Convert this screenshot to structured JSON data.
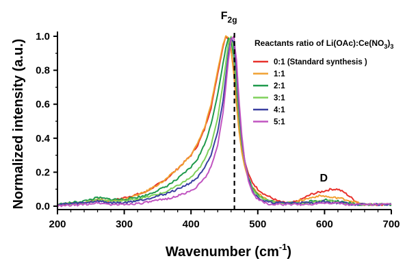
{
  "chart_data": {
    "type": "line",
    "xlabel": "Wavenumber (cm-1)",
    "xlabel_main": "Wavenumber (cm",
    "xlabel_sup": "-1",
    "xlabel_tail": ")",
    "ylabel": "Normalized intensity (a.u.)",
    "xlim": [
      200,
      700
    ],
    "ylim": [
      -0.02,
      1.02
    ],
    "x_ticks": [
      "200",
      "300",
      "400",
      "500",
      "600",
      "700"
    ],
    "y_ticks": [
      "0.0",
      "0.2",
      "0.4",
      "0.6",
      "0.8",
      "1.0"
    ],
    "grid": false,
    "legend_position": "top-right",
    "legend_title": "Reactants ratio of Li(OAc):Ce(NO3)3",
    "legend_title_parts": [
      "Reactants ratio of Li(OAc):Ce(NO",
      "3",
      ")",
      "3"
    ],
    "annotations": {
      "peak_main": "F",
      "peak_sub": "2g",
      "peak_label": "F2g",
      "peak_x": 465,
      "defect_label": "D",
      "defect_x": 605,
      "defect_y": 0.13
    },
    "series": [
      {
        "name": "0:1 (Standard synthesis )",
        "color": "#e8302b",
        "x": [
          200,
          240,
          260,
          280,
          300,
          330,
          360,
          380,
          400,
          410,
          420,
          430,
          440,
          448,
          452,
          456,
          460,
          464,
          468,
          472,
          476,
          480,
          486,
          492,
          500,
          510,
          520,
          530,
          540,
          550,
          560,
          570,
          580,
          590,
          600,
          610,
          620,
          630,
          640,
          650,
          660,
          680,
          700
        ],
        "y": [
          0.01,
          0.02,
          0.04,
          0.03,
          0.05,
          0.08,
          0.15,
          0.22,
          0.3,
          0.36,
          0.45,
          0.58,
          0.78,
          0.94,
          1.0,
          0.98,
          0.92,
          0.8,
          0.64,
          0.48,
          0.36,
          0.27,
          0.19,
          0.14,
          0.1,
          0.07,
          0.05,
          0.03,
          0.02,
          0.02,
          0.03,
          0.05,
          0.07,
          0.08,
          0.09,
          0.1,
          0.1,
          0.08,
          0.05,
          0.02,
          0.01,
          0.01,
          0.01
        ]
      },
      {
        "name": "1:1",
        "color": "#f0a030",
        "x": [
          200,
          240,
          260,
          280,
          300,
          330,
          360,
          380,
          400,
          410,
          420,
          430,
          440,
          448,
          452,
          456,
          460,
          464,
          468,
          472,
          476,
          480,
          486,
          492,
          500,
          510,
          520,
          530,
          540,
          550,
          560,
          570,
          580,
          590,
          600,
          610,
          620,
          630,
          640,
          650,
          660,
          680,
          700
        ],
        "y": [
          0.01,
          0.02,
          0.04,
          0.03,
          0.04,
          0.08,
          0.15,
          0.22,
          0.3,
          0.37,
          0.46,
          0.6,
          0.8,
          0.95,
          1.0,
          0.99,
          0.92,
          0.78,
          0.6,
          0.44,
          0.32,
          0.24,
          0.16,
          0.11,
          0.08,
          0.05,
          0.03,
          0.02,
          0.02,
          0.02,
          0.03,
          0.04,
          0.05,
          0.06,
          0.06,
          0.05,
          0.05,
          0.04,
          0.03,
          0.02,
          0.01,
          0.01,
          0.01
        ]
      },
      {
        "name": "2:1",
        "color": "#1f9a4c",
        "x": [
          200,
          240,
          260,
          280,
          300,
          330,
          360,
          380,
          400,
          410,
          420,
          430,
          440,
          448,
          452,
          456,
          460,
          464,
          468,
          472,
          476,
          480,
          486,
          492,
          500,
          510,
          520,
          530,
          540,
          550,
          560,
          570,
          580,
          590,
          600,
          610,
          620,
          630,
          640,
          650,
          660,
          680,
          700
        ],
        "y": [
          0.01,
          0.03,
          0.05,
          0.04,
          0.04,
          0.06,
          0.11,
          0.16,
          0.23,
          0.28,
          0.36,
          0.48,
          0.66,
          0.84,
          0.93,
          0.99,
          0.97,
          0.88,
          0.7,
          0.52,
          0.37,
          0.27,
          0.17,
          0.11,
          0.07,
          0.04,
          0.03,
          0.02,
          0.02,
          0.02,
          0.02,
          0.02,
          0.03,
          0.03,
          0.04,
          0.03,
          0.03,
          0.02,
          0.02,
          0.01,
          0.01,
          0.01,
          0.01
        ]
      },
      {
        "name": "3:1",
        "color": "#7fd05a",
        "x": [
          200,
          240,
          260,
          280,
          300,
          330,
          360,
          380,
          400,
          410,
          420,
          430,
          440,
          448,
          452,
          456,
          460,
          464,
          468,
          472,
          476,
          480,
          486,
          492,
          500,
          510,
          520,
          530,
          540,
          550,
          560,
          570,
          580,
          590,
          600,
          610,
          620,
          630,
          640,
          650,
          660,
          680,
          700
        ],
        "y": [
          0.01,
          0.02,
          0.04,
          0.03,
          0.03,
          0.05,
          0.08,
          0.12,
          0.17,
          0.21,
          0.27,
          0.36,
          0.52,
          0.72,
          0.84,
          0.96,
          1.0,
          0.92,
          0.74,
          0.54,
          0.38,
          0.27,
          0.16,
          0.1,
          0.06,
          0.04,
          0.03,
          0.02,
          0.02,
          0.02,
          0.02,
          0.02,
          0.02,
          0.03,
          0.03,
          0.03,
          0.02,
          0.02,
          0.01,
          0.01,
          0.01,
          0.01,
          0.01
        ]
      },
      {
        "name": "4:1",
        "color": "#3a3fa0",
        "x": [
          200,
          240,
          260,
          280,
          300,
          330,
          360,
          380,
          400,
          410,
          420,
          430,
          440,
          448,
          452,
          456,
          460,
          464,
          468,
          472,
          476,
          480,
          486,
          492,
          500,
          510,
          520,
          530,
          540,
          550,
          560,
          570,
          580,
          590,
          600,
          610,
          620,
          630,
          640,
          650,
          660,
          680,
          700
        ],
        "y": [
          0.01,
          0.02,
          0.03,
          0.02,
          0.02,
          0.04,
          0.07,
          0.1,
          0.14,
          0.17,
          0.22,
          0.3,
          0.44,
          0.62,
          0.76,
          0.9,
          0.99,
          0.96,
          0.8,
          0.58,
          0.4,
          0.28,
          0.16,
          0.09,
          0.05,
          0.03,
          0.02,
          0.02,
          0.02,
          0.02,
          0.02,
          0.02,
          0.02,
          0.02,
          0.03,
          0.02,
          0.02,
          0.02,
          0.01,
          0.01,
          0.01,
          0.01,
          0.01
        ]
      },
      {
        "name": "5:1",
        "color": "#c054c0",
        "x": [
          200,
          240,
          260,
          280,
          300,
          330,
          360,
          380,
          400,
          410,
          420,
          430,
          440,
          448,
          452,
          456,
          460,
          464,
          468,
          472,
          476,
          480,
          486,
          492,
          500,
          510,
          520,
          530,
          540,
          550,
          560,
          570,
          580,
          590,
          600,
          610,
          620,
          630,
          640,
          650,
          660,
          680,
          700
        ],
        "y": [
          0.0,
          0.01,
          0.02,
          0.01,
          0.01,
          0.02,
          0.04,
          0.06,
          0.09,
          0.12,
          0.16,
          0.23,
          0.36,
          0.55,
          0.7,
          0.86,
          0.98,
          1.0,
          0.86,
          0.62,
          0.42,
          0.28,
          0.15,
          0.08,
          0.04,
          0.02,
          0.01,
          0.01,
          0.01,
          0.01,
          0.01,
          0.01,
          0.01,
          0.02,
          0.02,
          0.02,
          0.02,
          0.01,
          0.01,
          0.01,
          0.01,
          0.01,
          0.01
        ]
      }
    ]
  }
}
